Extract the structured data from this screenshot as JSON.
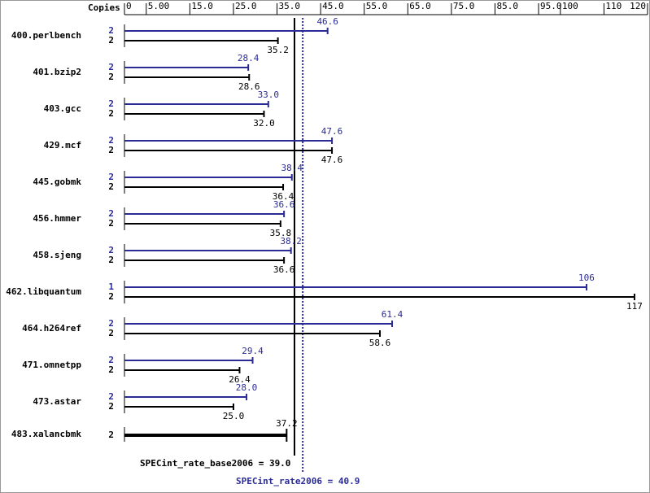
{
  "chart_data": {
    "type": "spec-bar",
    "copies_header": "Copies",
    "categories": [
      "400.perlbench",
      "401.bzip2",
      "403.gcc",
      "429.mcf",
      "445.gobmk",
      "456.hmmer",
      "458.sjeng",
      "462.libquantum",
      "464.h264ref",
      "471.omnetpp",
      "473.astar",
      "483.xalancbmk"
    ],
    "series": [
      {
        "name": "peak",
        "color": "#2b2b96",
        "copies": [
          2,
          2,
          2,
          2,
          2,
          2,
          2,
          1,
          2,
          2,
          2,
          null
        ],
        "values": [
          46.6,
          28.4,
          33.0,
          47.6,
          38.4,
          36.6,
          38.2,
          106,
          61.4,
          29.4,
          28.0,
          null
        ],
        "value_labels": [
          "46.6",
          "28.4",
          "33.0",
          "47.6",
          "38.4",
          "36.6",
          "38.2",
          "106",
          "61.4",
          "29.4",
          "28.0",
          null
        ]
      },
      {
        "name": "base",
        "color": "#000000",
        "copies": [
          2,
          2,
          2,
          2,
          2,
          2,
          2,
          2,
          2,
          2,
          2,
          2
        ],
        "values": [
          35.2,
          28.6,
          32.0,
          47.6,
          36.4,
          35.8,
          36.6,
          117,
          58.6,
          26.4,
          25.0,
          37.2
        ],
        "value_labels": [
          "35.2",
          "28.6",
          "32.0",
          "47.6",
          "36.4",
          "35.8",
          "36.6",
          "117",
          "58.6",
          "26.4",
          "25.0",
          "37.2"
        ]
      }
    ],
    "xlim": [
      0,
      120
    ],
    "xticks": [
      0,
      {
        "value": 5,
        "label": "5.00"
      },
      {
        "value": 15,
        "label": "15.0"
      },
      {
        "value": 25,
        "label": "25.0"
      },
      {
        "value": 35,
        "label": "35.0"
      },
      {
        "value": 45,
        "label": "45.0"
      },
      {
        "value": 55,
        "label": "55.0"
      },
      {
        "value": 65,
        "label": "65.0"
      },
      {
        "value": 75,
        "label": "75.0"
      },
      {
        "value": 85,
        "label": "85.0"
      },
      {
        "value": 95,
        "label": "95.0"
      },
      100,
      110,
      120
    ],
    "base_mean": {
      "label": "SPECint_rate_base2006 = 39.0",
      "value": 39.0,
      "color": "#000000"
    },
    "peak_mean": {
      "label": "SPECint_rate2006 = 40.9",
      "value": 40.9,
      "color": "#2b2b96"
    }
  }
}
